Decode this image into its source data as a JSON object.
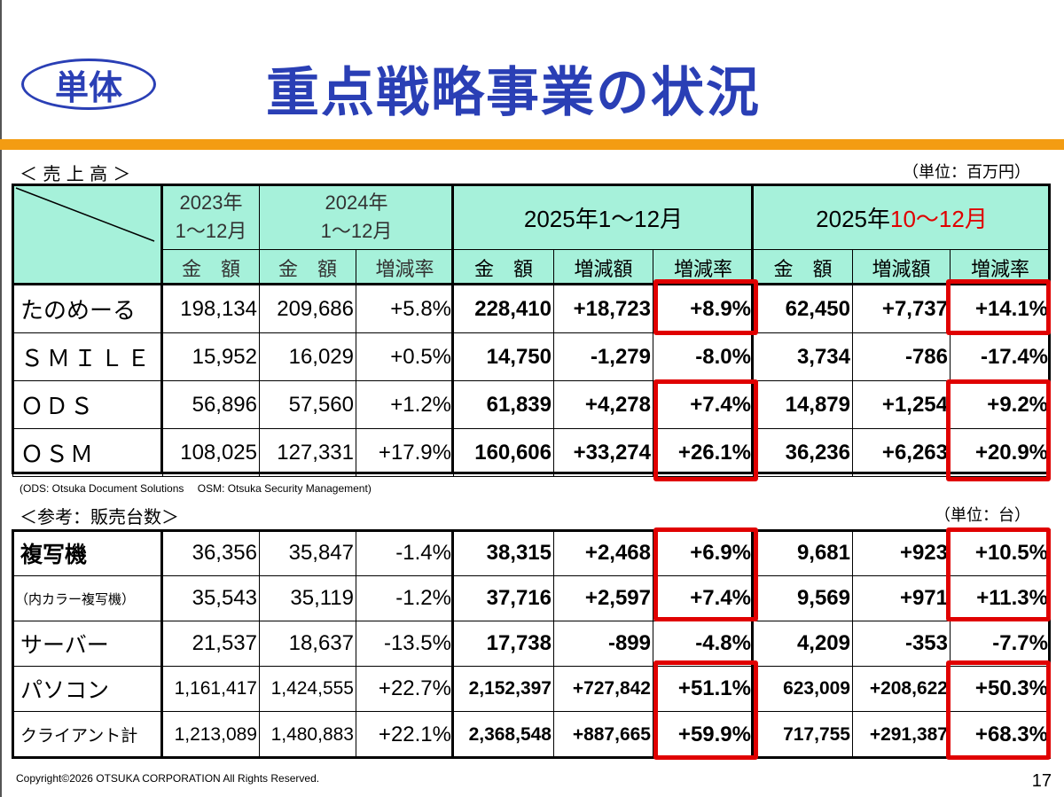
{
  "badge": "単体",
  "title": "重点戦略事業の状況",
  "sales": {
    "label": "＜ 売 上 高 ＞",
    "unit": "（単位：百万円）",
    "headers": {
      "y2023": "2023年\n1～12月",
      "y2024": "2024年\n1～12月",
      "p2025_black": "2025年1～12月",
      "q_black": "2025年",
      "q_red": "10～12月",
      "amount": "金　額",
      "change_rate": "増減率",
      "change_amount": "増減額"
    },
    "rows": [
      {
        "name": "たのめーる",
        "v2023": "198,134",
        "v2024": "209,686",
        "r2024": "+5.8%",
        "a2025": "228,410",
        "d2025": "+18,723",
        "r2025": "+8.9%",
        "aq": "62,450",
        "dq": "+7,737",
        "rq": "+14.1%"
      },
      {
        "name": "ＳＭＩＬＥ",
        "v2023": "15,952",
        "v2024": "16,029",
        "r2024": "+0.5%",
        "a2025": "14,750",
        "d2025": "-1,279",
        "r2025": "-8.0%",
        "aq": "3,734",
        "dq": "-786",
        "rq": "-17.4%"
      },
      {
        "name": "ＯＤＳ",
        "v2023": "56,896",
        "v2024": "57,560",
        "r2024": "+1.2%",
        "a2025": "61,839",
        "d2025": "+4,278",
        "r2025": "+7.4%",
        "aq": "14,879",
        "dq": "+1,254",
        "rq": "+9.2%"
      },
      {
        "name": "ＯＳＭ",
        "v2023": "108,025",
        "v2024": "127,331",
        "r2024": "+17.9%",
        "a2025": "160,606",
        "d2025": "+33,274",
        "r2025": "+26.1%",
        "aq": "36,236",
        "dq": "+6,263",
        "rq": "+20.9%"
      }
    ],
    "footnote": "(ODS: Otsuka Document Solutions　 OSM: Otsuka Security Management)"
  },
  "units": {
    "label": "＜参考：販売台数＞",
    "unit": "（単位：台）",
    "rows": [
      {
        "name": "複写機",
        "v2023": "36,356",
        "v2024": "35,847",
        "r2024": "-1.4%",
        "a2025": "38,315",
        "d2025": "+2,468",
        "r2025": "+6.9%",
        "aq": "9,681",
        "dq": "+923",
        "rq": "+10.5%"
      },
      {
        "name": "（内カラー複写機）",
        "v2023": "35,543",
        "v2024": "35,119",
        "r2024": "-1.2%",
        "a2025": "37,716",
        "d2025": "+2,597",
        "r2025": "+7.4%",
        "aq": "9,569",
        "dq": "+971",
        "rq": "+11.3%"
      },
      {
        "name": "サーバー",
        "v2023": "21,537",
        "v2024": "18,637",
        "r2024": "-13.5%",
        "a2025": "17,738",
        "d2025": "-899",
        "r2025": "-4.8%",
        "aq": "4,209",
        "dq": "-353",
        "rq": "-7.7%"
      },
      {
        "name": "パソコン",
        "v2023": "1,161,417",
        "v2024": "1,424,555",
        "r2024": "+22.7%",
        "a2025": "2,152,397",
        "d2025": "+727,842",
        "r2025": "+51.1%",
        "aq": "623,009",
        "dq": "+208,622",
        "rq": "+50.3%"
      },
      {
        "name": "クライアント計",
        "v2023": "1,213,089",
        "v2024": "1,480,883",
        "r2024": "+22.1%",
        "a2025": "2,368,548",
        "d2025": "+887,665",
        "r2025": "+59.9%",
        "aq": "717,755",
        "dq": "+291,387",
        "rq": "+68.3%"
      }
    ]
  },
  "copyright": "Copyright©2026 OTSUKA CORPORATION All Rights Reserved.",
  "page_number": "17",
  "colors": {
    "title": "#2a3fb5",
    "header_bg": "#a6f1da",
    "accent_bar": "#f39c12",
    "highlight": "#e00000"
  }
}
